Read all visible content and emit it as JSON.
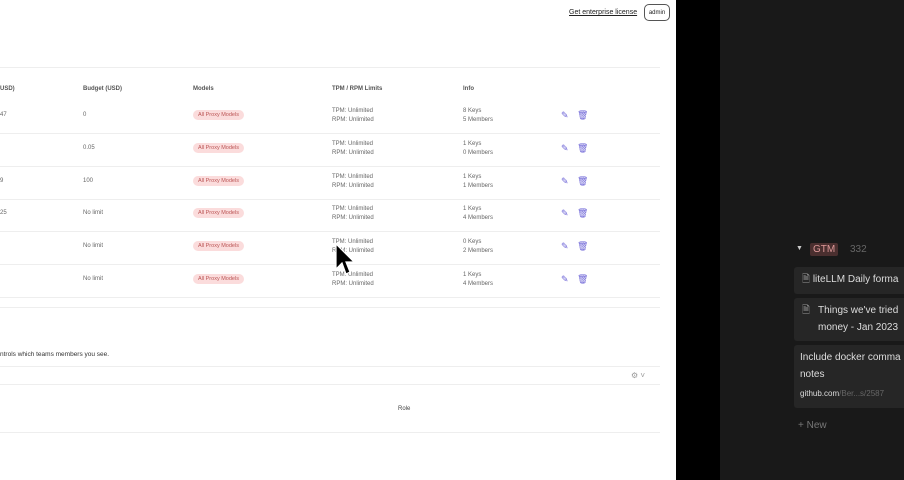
{
  "header": {
    "license_link": "Get enterprise license",
    "user_badge": "admin"
  },
  "table": {
    "columns": [
      "USD)",
      "Budget (USD)",
      "Models",
      "TPM / RPM Limits",
      "Info"
    ],
    "rows": [
      {
        "spend": "47",
        "budget": "0",
        "models": "All Proxy Models",
        "tpm": "TPM: Unlimited",
        "rpm": "RPM: Unlimited",
        "keys": "8 Keys",
        "members": "5 Members"
      },
      {
        "spend": "",
        "budget": "0.05",
        "models": "All Proxy Models",
        "tpm": "TPM: Unlimited",
        "rpm": "RPM: Unlimited",
        "keys": "1 Keys",
        "members": "0 Members"
      },
      {
        "spend": "9",
        "budget": "100",
        "models": "All Proxy Models",
        "tpm": "TPM: Unlimited",
        "rpm": "RPM: Unlimited",
        "keys": "1 Keys",
        "members": "1 Members"
      },
      {
        "spend": "25",
        "budget": "No limit",
        "models": "All Proxy Models",
        "tpm": "TPM: Unlimited",
        "rpm": "RPM: Unlimited",
        "keys": "1 Keys",
        "members": "4 Members"
      },
      {
        "spend": "",
        "budget": "No limit",
        "models": "All Proxy Models",
        "tpm": "TPM: Unlimited",
        "rpm": "RPM: Unlimited",
        "keys": "0 Keys",
        "members": "2 Members"
      },
      {
        "spend": "",
        "budget": "No limit",
        "models": "All Proxy Models",
        "tpm": "TPM: Unlimited",
        "rpm": "RPM: Unlimited",
        "keys": "1 Keys",
        "members": "4 Members"
      }
    ]
  },
  "members": {
    "note": "ntrols which teams members you see.",
    "role_header": "Role"
  },
  "sidebar": {
    "group_tag": "GTM",
    "group_count": "332",
    "cards": [
      {
        "title": "liteLLM Daily forma"
      },
      {
        "title": "Things we've tried",
        "title2": "money - Jan 2023"
      },
      {
        "title": "Include docker comma",
        "title2": "notes",
        "link_host": "github.com",
        "link_path": "/Ber...s/2587"
      }
    ],
    "new_label": "New"
  },
  "colors": {
    "accent": "#6c63d6",
    "tag_bg": "#fbdcdc",
    "dark_bg": "#191919"
  }
}
